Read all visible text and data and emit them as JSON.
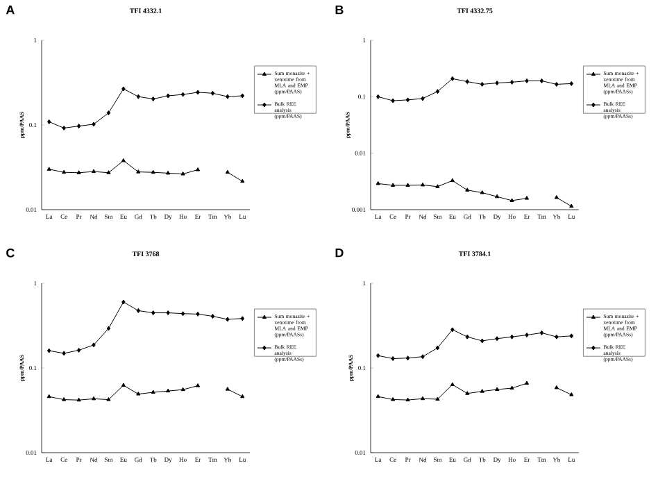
{
  "chart_data": [
    {
      "type": "line",
      "title": "TFI 4332.1",
      "ylabel": "ppm/PAAS",
      "annotations": [
        "A"
      ],
      "log": true,
      "ylim": [
        0.01,
        1
      ],
      "yticks": [
        {
          "value": 0.01,
          "label": "0.01"
        },
        {
          "value": 0.1,
          "label": "0.1"
        },
        {
          "value": 1,
          "label": "1"
        }
      ],
      "legend": "right",
      "line_style": "solid",
      "categories": [
        "La",
        "Ce",
        "Pr",
        "Nd",
        "Sm",
        "Eu",
        "Gd",
        "Tb",
        "Dy",
        "Ho",
        "Er",
        "Tm",
        "Yb",
        "Lu"
      ],
      "series": [
        {
          "name": "Sum monazite + xenotime from MLA and EMP (ppm/PAAS)",
          "color": "#000000",
          "marker": "triangle",
          "values": [
            0.03,
            0.0276,
            0.0273,
            0.0282,
            0.0273,
            0.0379,
            0.0279,
            0.0276,
            0.027,
            0.0264,
            0.0296,
            null,
            0.0276,
            0.0216
          ]
        },
        {
          "name": "Bulk REE analysis (ppm/PAAS)",
          "color": "#000000",
          "marker": "diamond",
          "values": [
            0.109,
            0.092,
            0.097,
            0.102,
            0.139,
            0.267,
            0.216,
            0.203,
            0.221,
            0.229,
            0.243,
            0.237,
            0.216,
            0.221
          ]
        }
      ]
    },
    {
      "type": "line",
      "title": "TFI 4332.75",
      "ylabel": "ppm/PAAS",
      "annotations": [
        "B"
      ],
      "log": true,
      "ylim": [
        0.001,
        1
      ],
      "yticks": [
        {
          "value": 0.001,
          "label": "0.001"
        },
        {
          "value": 0.01,
          "label": "0.01"
        },
        {
          "value": 0.1,
          "label": "0.1"
        },
        {
          "value": 1,
          "label": "1"
        }
      ],
      "legend": "right",
      "line_style": "solid",
      "categories": [
        "La",
        "Ce",
        "Pr",
        "Nd",
        "Sm",
        "Eu",
        "Gd",
        "Tb",
        "Dy",
        "Ho",
        "Er",
        "Tm",
        "Yb",
        "Lu"
      ],
      "series": [
        {
          "name": "Sum monazite + xenotime from MLA and EMP (ppm/PAASs)",
          "color": "#000000",
          "marker": "triangle",
          "values": [
            0.0029,
            0.0027,
            0.0027,
            0.00274,
            0.00256,
            0.00327,
            0.00222,
            0.002,
            0.0017,
            0.00145,
            0.00159,
            null,
            0.00164,
            0.00115
          ]
        },
        {
          "name": "Bulk REE analysis (ppm/PAASs)",
          "color": "#000000",
          "marker": "diamond",
          "values": [
            0.1,
            0.085,
            0.088,
            0.093,
            0.124,
            0.209,
            0.185,
            0.166,
            0.175,
            0.181,
            0.191,
            0.191,
            0.166,
            0.171
          ]
        }
      ]
    },
    {
      "type": "line",
      "title": "TFI 3768",
      "ylabel": "ppm/PAAS",
      "annotations": [
        "C"
      ],
      "log": true,
      "ylim": [
        0.01,
        1
      ],
      "yticks": [
        {
          "value": 0.01,
          "label": "0.01"
        },
        {
          "value": 0.1,
          "label": "0.1"
        },
        {
          "value": 1,
          "label": "1"
        }
      ],
      "legend": "right",
      "line_style": "solid",
      "categories": [
        "La",
        "Ce",
        "Pr",
        "Nd",
        "Sm",
        "Eu",
        "Gd",
        "Tb",
        "Dy",
        "Ho",
        "Er",
        "Tm",
        "Yb",
        "Lu"
      ],
      "series": [
        {
          "name": "Sum monazite + xenotime from MLA and EMP (ppm/PAASs)",
          "color": "#000000",
          "marker": "triangle",
          "values": [
            0.0459,
            0.0423,
            0.0418,
            0.0433,
            0.0423,
            0.0624,
            0.0492,
            0.0516,
            0.0535,
            0.0555,
            0.0617,
            null,
            0.0561,
            0.0459
          ]
        },
        {
          "name": "Bulk REE analysis (ppm/PAASs)",
          "color": "#000000",
          "marker": "diamond",
          "values": [
            0.16,
            0.149,
            0.162,
            0.187,
            0.293,
            0.601,
            0.475,
            0.448,
            0.448,
            0.438,
            0.433,
            0.408,
            0.375,
            0.384
          ]
        }
      ]
    },
    {
      "type": "line",
      "title": "TFI 3784.1",
      "ylabel": "ppm/PAAS",
      "annotations": [
        "D"
      ],
      "log": true,
      "ylim": [
        0.01,
        1
      ],
      "yticks": [
        {
          "value": 0.01,
          "label": "0.01"
        },
        {
          "value": 0.1,
          "label": "0.1"
        },
        {
          "value": 1,
          "label": "1"
        }
      ],
      "legend": "right",
      "line_style": "solid",
      "categories": [
        "La",
        "Ce",
        "Pr",
        "Nd",
        "Sm",
        "Eu",
        "Gd",
        "Tb",
        "Dy",
        "Ho",
        "Er",
        "Tm",
        "Yb",
        "Lu"
      ],
      "series": [
        {
          "name": "Sum monazite + xenotime from MLA and EMP (ppm/PAASs)",
          "color": "#000000",
          "marker": "triangle",
          "values": [
            0.046,
            0.0424,
            0.0419,
            0.0434,
            0.0428,
            0.0636,
            0.05,
            0.053,
            0.0557,
            0.0578,
            0.0659,
            null,
            0.0585,
            0.0483
          ]
        },
        {
          "name": "Bulk REE analysis (ppm/PAASs)",
          "color": "#000000",
          "marker": "diamond",
          "values": [
            0.14,
            0.129,
            0.131,
            0.136,
            0.173,
            0.283,
            0.233,
            0.209,
            0.222,
            0.233,
            0.245,
            0.26,
            0.233,
            0.239
          ]
        }
      ]
    }
  ]
}
